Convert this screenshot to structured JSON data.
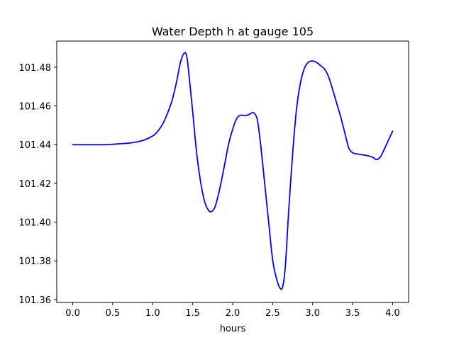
{
  "chart_data": {
    "type": "line",
    "title": "Water Depth h at gauge 105",
    "xlabel": "hours",
    "ylabel": "",
    "xlim": [
      -0.2,
      4.2
    ],
    "ylim": [
      101.3585,
      101.4935
    ],
    "x_ticks": [
      0.0,
      0.5,
      1.0,
      1.5,
      2.0,
      2.5,
      3.0,
      3.5,
      4.0
    ],
    "x_tick_labels": [
      "0.0",
      "0.5",
      "1.0",
      "1.5",
      "2.0",
      "2.5",
      "3.0",
      "3.5",
      "4.0"
    ],
    "y_ticks": [
      101.36,
      101.38,
      101.4,
      101.42,
      101.44,
      101.46,
      101.48
    ],
    "y_tick_labels": [
      "101.36",
      "101.38",
      "101.40",
      "101.42",
      "101.44",
      "101.46",
      "101.48"
    ],
    "grid": false,
    "legend": "none",
    "series": [
      {
        "color": "#0000ff",
        "x": [
          0.0,
          0.1,
          0.2,
          0.3,
          0.4,
          0.5,
          0.6,
          0.7,
          0.8,
          0.9,
          1.0,
          1.05,
          1.1,
          1.15,
          1.2,
          1.25,
          1.3,
          1.35,
          1.4,
          1.43,
          1.46,
          1.5,
          1.55,
          1.6,
          1.65,
          1.7,
          1.74,
          1.78,
          1.82,
          1.86,
          1.9,
          1.95,
          2.0,
          2.05,
          2.1,
          2.15,
          2.2,
          2.25,
          2.28,
          2.31,
          2.35,
          2.4,
          2.45,
          2.5,
          2.55,
          2.6,
          2.63,
          2.66,
          2.7,
          2.75,
          2.8,
          2.85,
          2.9,
          2.95,
          3.0,
          3.05,
          3.1,
          3.15,
          3.2,
          3.25,
          3.3,
          3.35,
          3.4,
          3.45,
          3.5,
          3.55,
          3.6,
          3.65,
          3.7,
          3.75,
          3.8,
          3.85,
          3.9,
          3.95,
          4.0
        ],
        "y": [
          101.44,
          101.44,
          101.44,
          101.44,
          101.44,
          101.4402,
          101.4405,
          101.4408,
          101.4414,
          101.4425,
          101.4445,
          101.4463,
          101.449,
          101.4528,
          101.4578,
          101.464,
          101.4728,
          101.483,
          101.4875,
          101.4845,
          101.4735,
          101.457,
          101.4355,
          101.4205,
          101.4105,
          101.406,
          101.4055,
          101.408,
          101.414,
          101.4215,
          101.43,
          101.4405,
          101.448,
          101.4535,
          101.4552,
          101.455,
          101.4555,
          101.4566,
          101.4557,
          101.4525,
          101.44,
          101.42,
          101.4,
          101.3805,
          101.3705,
          101.3655,
          101.3675,
          101.378,
          101.4055,
          101.4355,
          101.459,
          101.4725,
          101.4798,
          101.4827,
          101.4832,
          101.4825,
          101.4808,
          101.479,
          101.475,
          101.4685,
          101.4615,
          101.4545,
          101.4465,
          101.4385,
          101.4358,
          101.4353,
          101.4349,
          101.4346,
          101.4342,
          101.4335,
          101.4323,
          101.4339,
          101.438,
          101.4425,
          101.447
        ]
      }
    ]
  }
}
